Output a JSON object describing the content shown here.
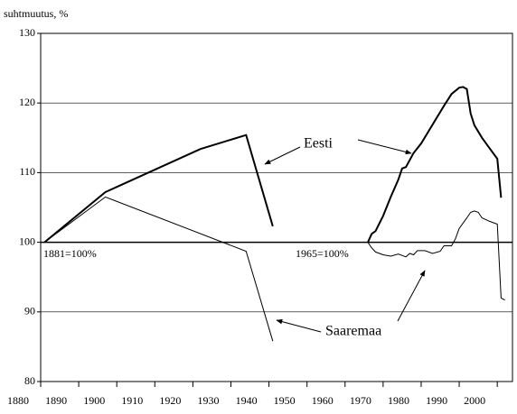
{
  "chart_data": {
    "type": "line",
    "ylabel": "suhtmuutus, %",
    "xlim": [
      1880,
      2004
    ],
    "ylim": [
      80,
      130
    ],
    "xticks": [
      1880,
      1890,
      1900,
      1910,
      1920,
      1930,
      1940,
      1950,
      1960,
      1970,
      1980,
      1990,
      2000
    ],
    "yticks": [
      80,
      90,
      100,
      110,
      120,
      130
    ],
    "grid": true,
    "annotations": [
      "Eesti",
      "Saaremaa",
      "1881=100%",
      "1965=100%"
    ],
    "series": [
      {
        "name": "Eesti",
        "color": "#000000",
        "width": 2,
        "x": [
          1881,
          1897,
          1922,
          1934,
          1941,
          null,
          1966,
          1967,
          1968,
          1970,
          1972,
          1974,
          1975,
          1976,
          1978,
          1980,
          1982,
          1984,
          1986,
          1988,
          1990,
          1991,
          1992,
          1993,
          1994,
          1996,
          1998,
          2000,
          2001
        ],
        "values": [
          100,
          107.2,
          113.4,
          115.4,
          102.3,
          null,
          100,
          101.2,
          101.6,
          103.8,
          106.5,
          109,
          110.6,
          110.8,
          112.8,
          114.2,
          116,
          117.8,
          119.6,
          121.3,
          122.2,
          122.3,
          122,
          118.5,
          116.8,
          115,
          113.5,
          112,
          106.4
        ]
      },
      {
        "name": "Saaremaa",
        "color": "#000000",
        "width": 1,
        "x": [
          1881,
          1897,
          1934,
          1941,
          null,
          1966,
          1967,
          1968,
          1970,
          1972,
          1974,
          1976,
          1977,
          1978,
          1979,
          1981,
          1983,
          1985,
          1986,
          1988,
          1989,
          1990,
          1992,
          1993,
          1994,
          1995,
          1996,
          1998,
          2000,
          2001,
          2002
        ],
        "values": [
          100,
          106.5,
          98.7,
          85.8,
          null,
          100,
          99.2,
          98.6,
          98.2,
          98,
          98.3,
          97.9,
          98.4,
          98.2,
          98.8,
          98.8,
          98.4,
          98.7,
          99.5,
          99.5,
          100.5,
          102,
          103.5,
          104.3,
          104.5,
          104.3,
          103.5,
          103,
          102.6,
          92,
          91.7
        ]
      }
    ]
  }
}
